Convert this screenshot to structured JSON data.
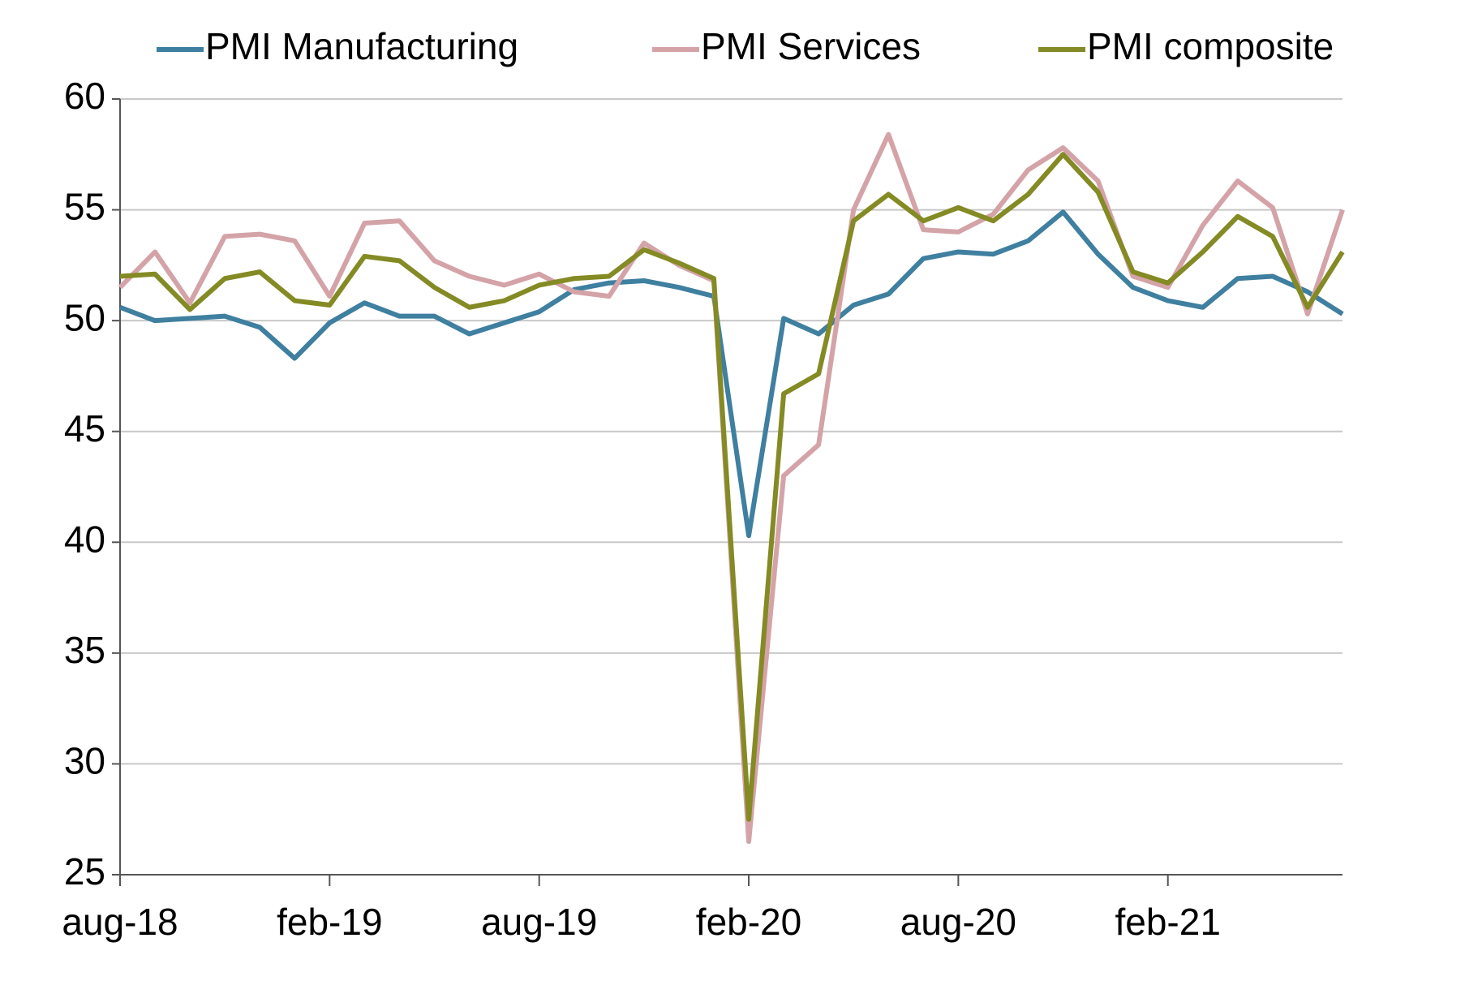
{
  "chart_data": {
    "type": "line",
    "categories": [
      "aug-18",
      null,
      null,
      null,
      null,
      null,
      "feb-19",
      null,
      null,
      null,
      null,
      null,
      "aug-19",
      null,
      null,
      null,
      null,
      null,
      "feb-20",
      null,
      null,
      null,
      null,
      null,
      "aug-20",
      null,
      null,
      null,
      null,
      null,
      "feb-21",
      null,
      null,
      null,
      null,
      null
    ],
    "series": [
      {
        "name": "PMI Manufacturing",
        "color": "#3f7fa0",
        "values": [
          50.6,
          50.0,
          50.1,
          50.2,
          49.7,
          48.3,
          49.9,
          50.8,
          50.2,
          50.2,
          49.4,
          49.9,
          50.4,
          51.4,
          51.7,
          51.8,
          51.5,
          51.1,
          40.3,
          50.1,
          49.4,
          50.7,
          51.2,
          52.8,
          53.1,
          53.0,
          53.6,
          54.9,
          53.0,
          51.5,
          50.9,
          50.6,
          51.9,
          52.0,
          51.3,
          50.3
        ]
      },
      {
        "name": "PMI Services",
        "color": "#d4a3a8",
        "values": [
          51.5,
          53.1,
          50.8,
          53.8,
          53.9,
          53.6,
          51.1,
          54.4,
          54.5,
          52.7,
          52.0,
          51.6,
          52.1,
          51.3,
          51.1,
          53.5,
          52.5,
          51.8,
          26.5,
          43.0,
          44.4,
          55.0,
          58.4,
          54.1,
          54.0,
          54.8,
          56.8,
          57.8,
          56.3,
          52.0,
          51.5,
          54.3,
          56.3,
          55.1,
          50.3,
          55.0
        ]
      },
      {
        "name": "PMI composite",
        "color": "#848a24",
        "values": [
          52.0,
          52.1,
          50.5,
          51.9,
          52.2,
          50.9,
          50.7,
          52.9,
          52.7,
          51.5,
          50.6,
          50.9,
          51.6,
          51.9,
          52.0,
          53.2,
          52.6,
          51.9,
          27.5,
          46.7,
          47.6,
          54.5,
          55.7,
          54.5,
          55.1,
          54.5,
          55.7,
          57.5,
          55.8,
          52.2,
          51.7,
          53.1,
          54.7,
          53.8,
          50.6,
          53.1
        ]
      }
    ],
    "ylim": [
      25,
      60
    ],
    "yticks": [
      25,
      30,
      35,
      40,
      45,
      50,
      55,
      60
    ],
    "grid": true,
    "legend": "top"
  }
}
